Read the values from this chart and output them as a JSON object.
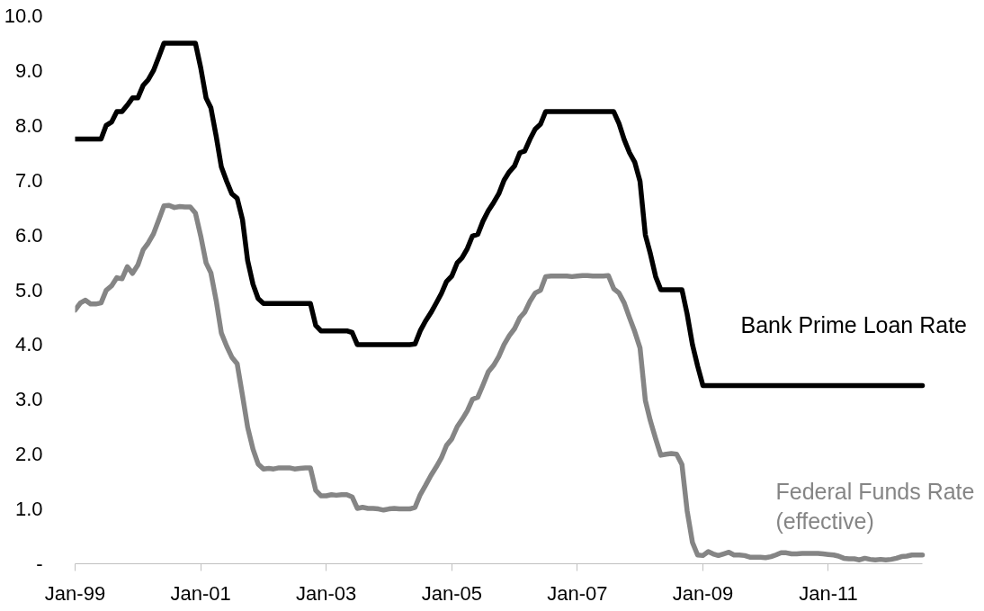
{
  "chart_data": {
    "type": "line",
    "x": [
      "1999-01",
      "1999-02",
      "1999-03",
      "1999-04",
      "1999-05",
      "1999-06",
      "1999-07",
      "1999-08",
      "1999-09",
      "1999-10",
      "1999-11",
      "1999-12",
      "2000-01",
      "2000-02",
      "2000-03",
      "2000-04",
      "2000-05",
      "2000-06",
      "2000-07",
      "2000-08",
      "2000-09",
      "2000-10",
      "2000-11",
      "2000-12",
      "2001-01",
      "2001-02",
      "2001-03",
      "2001-04",
      "2001-05",
      "2001-06",
      "2001-07",
      "2001-08",
      "2001-09",
      "2001-10",
      "2001-11",
      "2001-12",
      "2002-01",
      "2002-02",
      "2002-03",
      "2002-04",
      "2002-05",
      "2002-06",
      "2002-07",
      "2002-08",
      "2002-09",
      "2002-10",
      "2002-11",
      "2002-12",
      "2003-01",
      "2003-02",
      "2003-03",
      "2003-04",
      "2003-05",
      "2003-06",
      "2003-07",
      "2003-08",
      "2003-09",
      "2003-10",
      "2003-11",
      "2003-12",
      "2004-01",
      "2004-02",
      "2004-03",
      "2004-04",
      "2004-05",
      "2004-06",
      "2004-07",
      "2004-08",
      "2004-09",
      "2004-10",
      "2004-11",
      "2004-12",
      "2005-01",
      "2005-02",
      "2005-03",
      "2005-04",
      "2005-05",
      "2005-06",
      "2005-07",
      "2005-08",
      "2005-09",
      "2005-10",
      "2005-11",
      "2005-12",
      "2006-01",
      "2006-02",
      "2006-03",
      "2006-04",
      "2006-05",
      "2006-06",
      "2006-07",
      "2006-08",
      "2006-09",
      "2006-10",
      "2006-11",
      "2006-12",
      "2007-01",
      "2007-02",
      "2007-03",
      "2007-04",
      "2007-05",
      "2007-06",
      "2007-07",
      "2007-08",
      "2007-09",
      "2007-10",
      "2007-11",
      "2007-12",
      "2008-01",
      "2008-02",
      "2008-03",
      "2008-04",
      "2008-05",
      "2008-06",
      "2008-07",
      "2008-08",
      "2008-09",
      "2008-10",
      "2008-11",
      "2008-12",
      "2009-01",
      "2009-02",
      "2009-03",
      "2009-04",
      "2009-05",
      "2009-06",
      "2009-07",
      "2009-08",
      "2009-09",
      "2009-10",
      "2009-11",
      "2009-12",
      "2010-01",
      "2010-02",
      "2010-03",
      "2010-04",
      "2010-05",
      "2010-06",
      "2010-07",
      "2010-08",
      "2010-09",
      "2010-10",
      "2010-11",
      "2010-12",
      "2011-01",
      "2011-02",
      "2011-03",
      "2011-04",
      "2011-05",
      "2011-06",
      "2011-07",
      "2011-08",
      "2011-09",
      "2011-10",
      "2011-11",
      "2011-12",
      "2012-01",
      "2012-02",
      "2012-03",
      "2012-04",
      "2012-05",
      "2012-06",
      "2012-07"
    ],
    "series": [
      {
        "name": "Bank Prime Loan Rate",
        "color": "#000000",
        "values": [
          7.75,
          7.75,
          7.75,
          7.75,
          7.75,
          7.75,
          8.0,
          8.06,
          8.25,
          8.25,
          8.37,
          8.5,
          8.5,
          8.73,
          8.83,
          9.0,
          9.24,
          9.5,
          9.5,
          9.5,
          9.5,
          9.5,
          9.5,
          9.5,
          9.05,
          8.5,
          8.32,
          7.8,
          7.24,
          6.98,
          6.75,
          6.67,
          6.28,
          5.53,
          5.1,
          4.84,
          4.75,
          4.75,
          4.75,
          4.75,
          4.75,
          4.75,
          4.75,
          4.75,
          4.75,
          4.75,
          4.35,
          4.25,
          4.25,
          4.25,
          4.25,
          4.25,
          4.25,
          4.22,
          4.0,
          4.0,
          4.0,
          4.0,
          4.0,
          4.0,
          4.0,
          4.0,
          4.0,
          4.0,
          4.0,
          4.01,
          4.25,
          4.43,
          4.58,
          4.75,
          4.93,
          5.15,
          5.25,
          5.49,
          5.58,
          5.75,
          5.98,
          6.01,
          6.25,
          6.44,
          6.59,
          6.75,
          7.0,
          7.15,
          7.26,
          7.5,
          7.53,
          7.75,
          7.93,
          8.02,
          8.25,
          8.25,
          8.25,
          8.25,
          8.25,
          8.25,
          8.25,
          8.25,
          8.25,
          8.25,
          8.25,
          8.25,
          8.25,
          8.25,
          8.03,
          7.74,
          7.5,
          7.33,
          6.98,
          6.0,
          5.66,
          5.24,
          5.0,
          5.0,
          5.0,
          5.0,
          5.0,
          4.56,
          4.0,
          3.61,
          3.25,
          3.25,
          3.25,
          3.25,
          3.25,
          3.25,
          3.25,
          3.25,
          3.25,
          3.25,
          3.25,
          3.25,
          3.25,
          3.25,
          3.25,
          3.25,
          3.25,
          3.25,
          3.25,
          3.25,
          3.25,
          3.25,
          3.25,
          3.25,
          3.25,
          3.25,
          3.25,
          3.25,
          3.25,
          3.25,
          3.25,
          3.25,
          3.25,
          3.25,
          3.25,
          3.25,
          3.25,
          3.25,
          3.25,
          3.25,
          3.25,
          3.25,
          3.25
        ]
      },
      {
        "name": "Federal Funds Rate\n(effective)",
        "color": "#858585",
        "values": [
          4.63,
          4.76,
          4.81,
          4.74,
          4.74,
          4.76,
          4.99,
          5.07,
          5.22,
          5.2,
          5.42,
          5.3,
          5.45,
          5.73,
          5.85,
          6.02,
          6.27,
          6.53,
          6.54,
          6.5,
          6.52,
          6.51,
          6.51,
          6.4,
          5.98,
          5.49,
          5.31,
          4.8,
          4.21,
          3.97,
          3.77,
          3.65,
          3.07,
          2.49,
          2.09,
          1.82,
          1.73,
          1.74,
          1.73,
          1.75,
          1.75,
          1.75,
          1.73,
          1.74,
          1.75,
          1.75,
          1.34,
          1.24,
          1.24,
          1.26,
          1.25,
          1.26,
          1.26,
          1.22,
          1.01,
          1.03,
          1.01,
          1.01,
          1.0,
          0.98,
          1.0,
          1.01,
          1.0,
          1.0,
          1.0,
          1.03,
          1.26,
          1.43,
          1.61,
          1.76,
          1.93,
          2.16,
          2.28,
          2.5,
          2.63,
          2.79,
          3.0,
          3.04,
          3.26,
          3.5,
          3.62,
          3.78,
          4.0,
          4.16,
          4.29,
          4.49,
          4.59,
          4.79,
          4.94,
          4.99,
          5.24,
          5.25,
          5.25,
          5.25,
          5.25,
          5.24,
          5.25,
          5.26,
          5.26,
          5.25,
          5.25,
          5.25,
          5.26,
          5.02,
          4.94,
          4.76,
          4.49,
          4.24,
          3.94,
          2.98,
          2.61,
          2.28,
          1.98,
          2.0,
          2.01,
          2.0,
          1.81,
          0.97,
          0.39,
          0.16,
          0.15,
          0.22,
          0.18,
          0.15,
          0.18,
          0.21,
          0.16,
          0.16,
          0.15,
          0.12,
          0.12,
          0.12,
          0.11,
          0.13,
          0.16,
          0.2,
          0.2,
          0.18,
          0.18,
          0.19,
          0.19,
          0.19,
          0.19,
          0.18,
          0.17,
          0.16,
          0.14,
          0.1,
          0.09,
          0.09,
          0.07,
          0.1,
          0.08,
          0.07,
          0.08,
          0.07,
          0.08,
          0.1,
          0.13,
          0.14,
          0.16,
          0.16,
          0.16
        ]
      }
    ],
    "xlim": [
      "1999-01",
      "2012-07"
    ],
    "xticks": [
      {
        "value": "1999-01",
        "label": "Jan-99"
      },
      {
        "value": "2001-01",
        "label": "Jan-01"
      },
      {
        "value": "2003-01",
        "label": "Jan-03"
      },
      {
        "value": "2005-01",
        "label": "Jan-05"
      },
      {
        "value": "2007-01",
        "label": "Jan-07"
      },
      {
        "value": "2009-01",
        "label": "Jan-09"
      },
      {
        "value": "2011-01",
        "label": "Jan-11"
      }
    ],
    "ylim": [
      0,
      10
    ],
    "yticks": [
      {
        "value": 0,
        "label": "-"
      },
      {
        "value": 1,
        "label": "1.0"
      },
      {
        "value": 2,
        "label": "2.0"
      },
      {
        "value": 3,
        "label": "3.0"
      },
      {
        "value": 4,
        "label": "4.0"
      },
      {
        "value": 5,
        "label": "5.0"
      },
      {
        "value": 6,
        "label": "6.0"
      },
      {
        "value": 7,
        "label": "7.0"
      },
      {
        "value": 8,
        "label": "8.0"
      },
      {
        "value": 9,
        "label": "9.0"
      },
      {
        "value": 10,
        "label": "10.0"
      }
    ],
    "grid": false,
    "legend": false
  }
}
